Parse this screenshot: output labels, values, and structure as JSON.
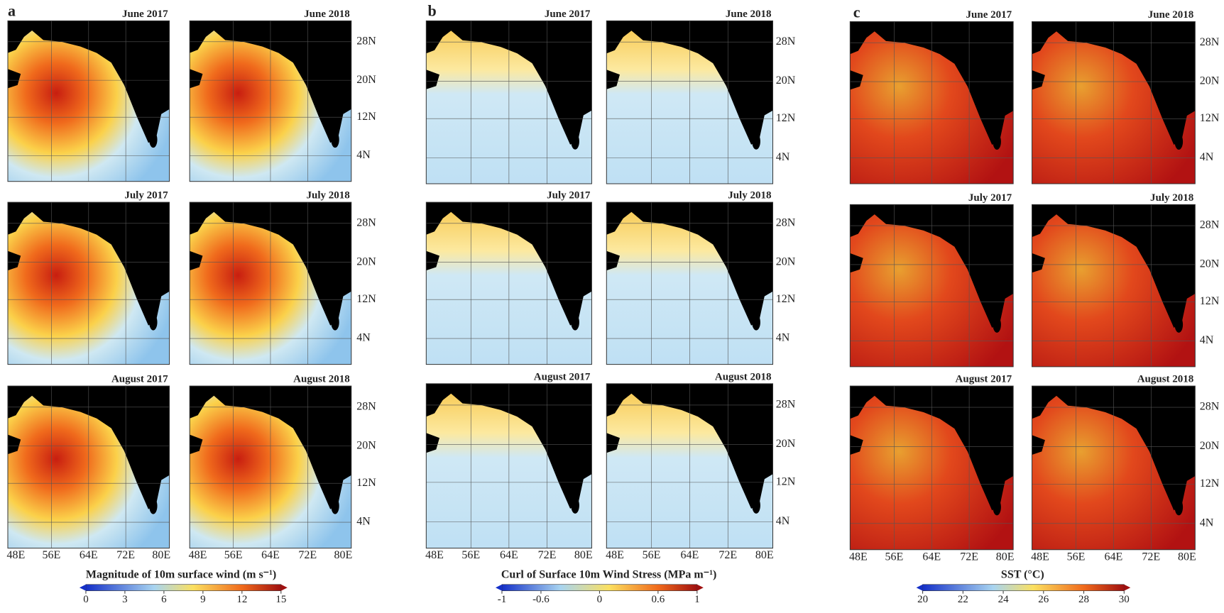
{
  "panels": [
    {
      "label": "a",
      "maps": [
        "June 2017",
        "June 2018",
        "July 2017",
        "July 2018",
        "August 2017",
        "August 2018"
      ],
      "lat_labels": [
        "28N",
        "20N",
        "12N",
        "4N"
      ],
      "lon_labels": [
        "48E",
        "56E",
        "64E",
        "72E",
        "80E"
      ],
      "colorbar": {
        "title": "Magnitude of 10m surface wind (m s⁻¹)",
        "lim": [
          0,
          15
        ],
        "ticks": [
          0,
          3,
          6,
          9,
          12,
          15
        ]
      }
    },
    {
      "label": "b",
      "maps": [
        "June 2017",
        "June 2018",
        "July 2017",
        "July 2018",
        "August 2017",
        "August 2018"
      ],
      "lat_labels": [
        "28N",
        "20N",
        "12N",
        "4N"
      ],
      "lon_labels": [
        "48E",
        "56E",
        "64E",
        "72E",
        "80E"
      ],
      "colorbar": {
        "title": "Curl of Surface 10m Wind Stress (MPa m⁻¹)",
        "lim": [
          -1,
          1
        ],
        "ticks": [
          -1,
          -0.6,
          0,
          0.6,
          1
        ]
      }
    },
    {
      "label": "c",
      "maps": [
        "June 2017",
        "June 2018",
        "July 2017",
        "July 2018",
        "August 2017",
        "August 2018"
      ],
      "lat_labels": [
        "28N",
        "20N",
        "12N",
        "4N"
      ],
      "lon_labels": [
        "48E",
        "56E",
        "64E",
        "72E",
        "80E"
      ],
      "colorbar": {
        "title": "SST (°C)",
        "lim": [
          20,
          30
        ],
        "ticks": [
          20,
          22,
          24,
          26,
          28,
          30
        ]
      }
    }
  ]
}
